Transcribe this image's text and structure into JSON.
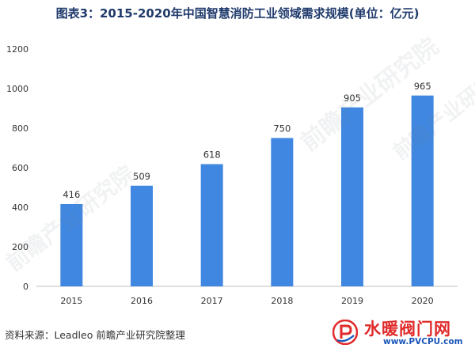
{
  "chart_data": {
    "type": "bar",
    "title": "图表3：2015-2020年中国智慧消防工业领域需求规模(单位：亿元)",
    "categories": [
      "2015",
      "2016",
      "2017",
      "2018",
      "2019",
      "2020"
    ],
    "values": [
      416,
      509,
      618,
      750,
      905,
      965
    ],
    "data_labels": [
      "416",
      "509",
      "618",
      "750",
      "905",
      "965"
    ],
    "yticks": [
      "0",
      "200",
      "400",
      "600",
      "800",
      "1000",
      "1200"
    ],
    "ylim": [
      0,
      1200
    ],
    "grid": false,
    "legend": "none",
    "xlabel": "",
    "ylabel": ""
  },
  "colors": {
    "bar": "#3f87e0",
    "title": "#1f3a6b",
    "axis": "#bfbfbf"
  },
  "footer": {
    "source": "资料来源：Leadleo 前瞻产业研究院整理"
  },
  "watermark_logo": {
    "name": "水暖阀门网",
    "url": "www.PVCPU.com"
  },
  "watermarks": [
    "前瞻产业研究院"
  ]
}
